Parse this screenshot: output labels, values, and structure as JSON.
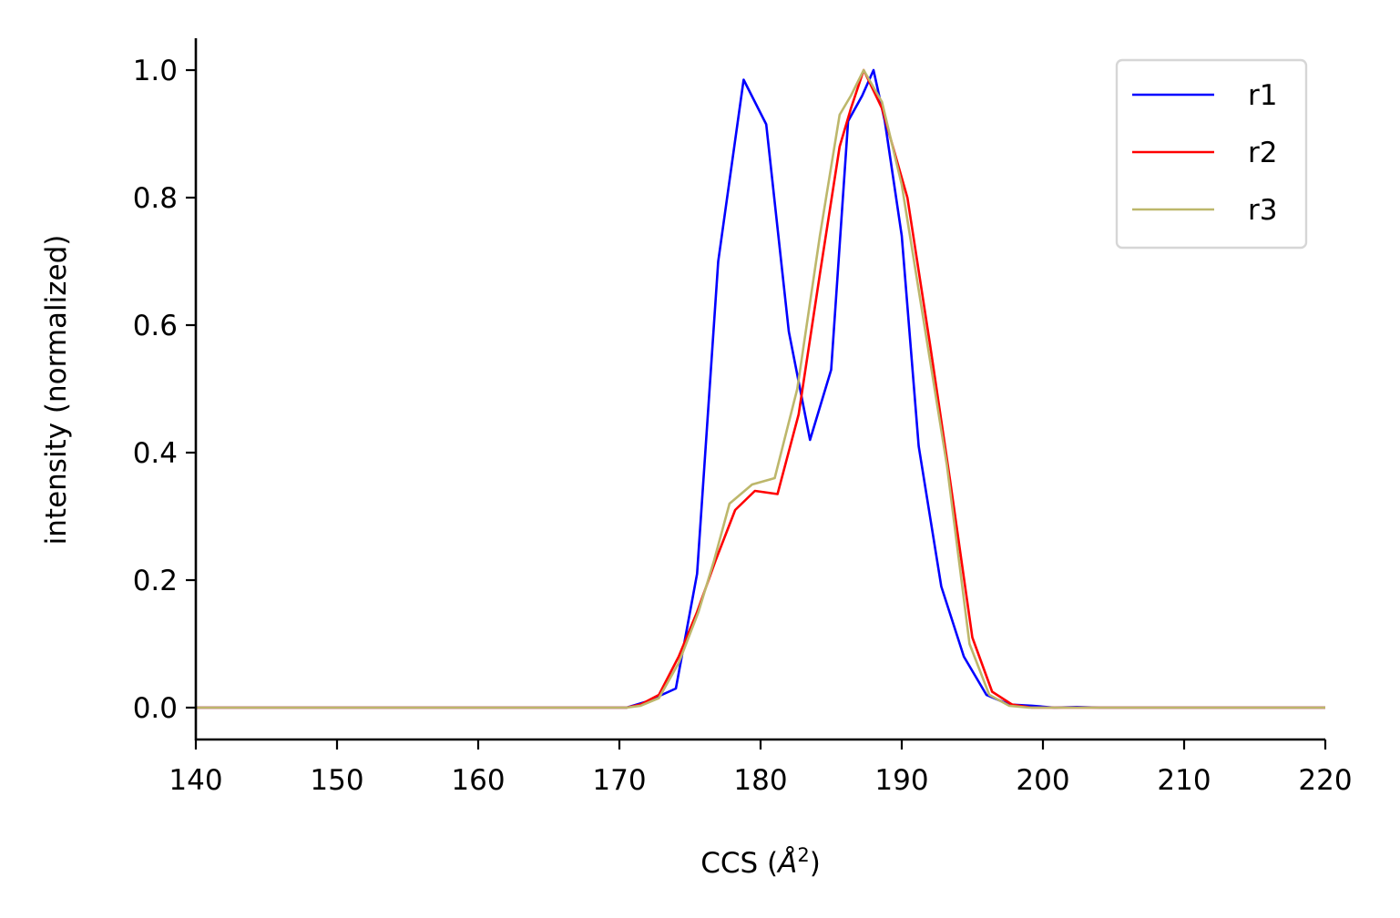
{
  "chart_data": {
    "type": "line",
    "xlabel": "CCS (",
    "xlabel_unit": "Å",
    "xlabel_sup": "2",
    "xlabel_close": ")",
    "ylabel": "intensity (normalized)",
    "xlim": [
      140,
      220
    ],
    "ylim": [
      -0.05,
      1.05
    ],
    "xticks": [
      140,
      150,
      160,
      170,
      180,
      190,
      200,
      210,
      220
    ],
    "xtick_labels": [
      "140",
      "150",
      "160",
      "170",
      "180",
      "190",
      "200",
      "210",
      "220"
    ],
    "yticks": [
      0.0,
      0.2,
      0.4,
      0.6,
      0.8,
      1.0
    ],
    "ytick_labels": [
      "0.0",
      "0.2",
      "0.4",
      "0.6",
      "0.8",
      "1.0"
    ],
    "grid": false,
    "legend_position": "top-right",
    "series": [
      {
        "name": "r1",
        "color": "#0000ff",
        "x": [
          140,
          170.5,
          172.0,
          173.0,
          174.0,
          175.5,
          177.0,
          178.8,
          180.4,
          182.0,
          183.5,
          185.0,
          186.2,
          187.2,
          188.0,
          188.8,
          190.0,
          191.2,
          192.8,
          194.4,
          196.0,
          197.6,
          199.2,
          200.8,
          202.4,
          204.0,
          220
        ],
        "y": [
          0.0,
          0.0,
          0.01,
          0.02,
          0.03,
          0.21,
          0.7,
          0.985,
          0.915,
          0.59,
          0.42,
          0.53,
          0.92,
          0.96,
          1.0,
          0.92,
          0.74,
          0.41,
          0.19,
          0.08,
          0.02,
          0.005,
          0.003,
          0.0,
          0.001,
          0.0,
          0.0
        ]
      },
      {
        "name": "r2",
        "color": "#ff0000",
        "x": [
          140,
          170.5,
          171.5,
          172.8,
          174.2,
          175.5,
          176.8,
          178.2,
          179.6,
          181.2,
          182.7,
          184.2,
          185.6,
          186.4,
          187.3,
          188.6,
          190.4,
          192.0,
          193.4,
          195.0,
          196.4,
          197.8,
          199.2,
          220
        ],
        "y": [
          0.0,
          0.0,
          0.005,
          0.02,
          0.08,
          0.15,
          0.23,
          0.31,
          0.34,
          0.335,
          0.46,
          0.68,
          0.88,
          0.94,
          1.0,
          0.94,
          0.8,
          0.57,
          0.36,
          0.11,
          0.025,
          0.005,
          0.0,
          0.0
        ]
      },
      {
        "name": "r3",
        "color": "#bdb76b",
        "x": [
          140,
          170.5,
          171.5,
          172.8,
          174.2,
          175.6,
          176.7,
          177.8,
          179.4,
          181.0,
          182.6,
          184.2,
          185.6,
          186.4,
          187.3,
          188.6,
          190.0,
          191.6,
          193.2,
          194.8,
          196.2,
          197.6,
          199.0,
          220
        ],
        "y": [
          0.0,
          0.0,
          0.003,
          0.015,
          0.07,
          0.15,
          0.23,
          0.32,
          0.35,
          0.36,
          0.5,
          0.74,
          0.93,
          0.96,
          1.0,
          0.95,
          0.82,
          0.6,
          0.38,
          0.1,
          0.02,
          0.003,
          0.0,
          0.0
        ]
      }
    ]
  }
}
